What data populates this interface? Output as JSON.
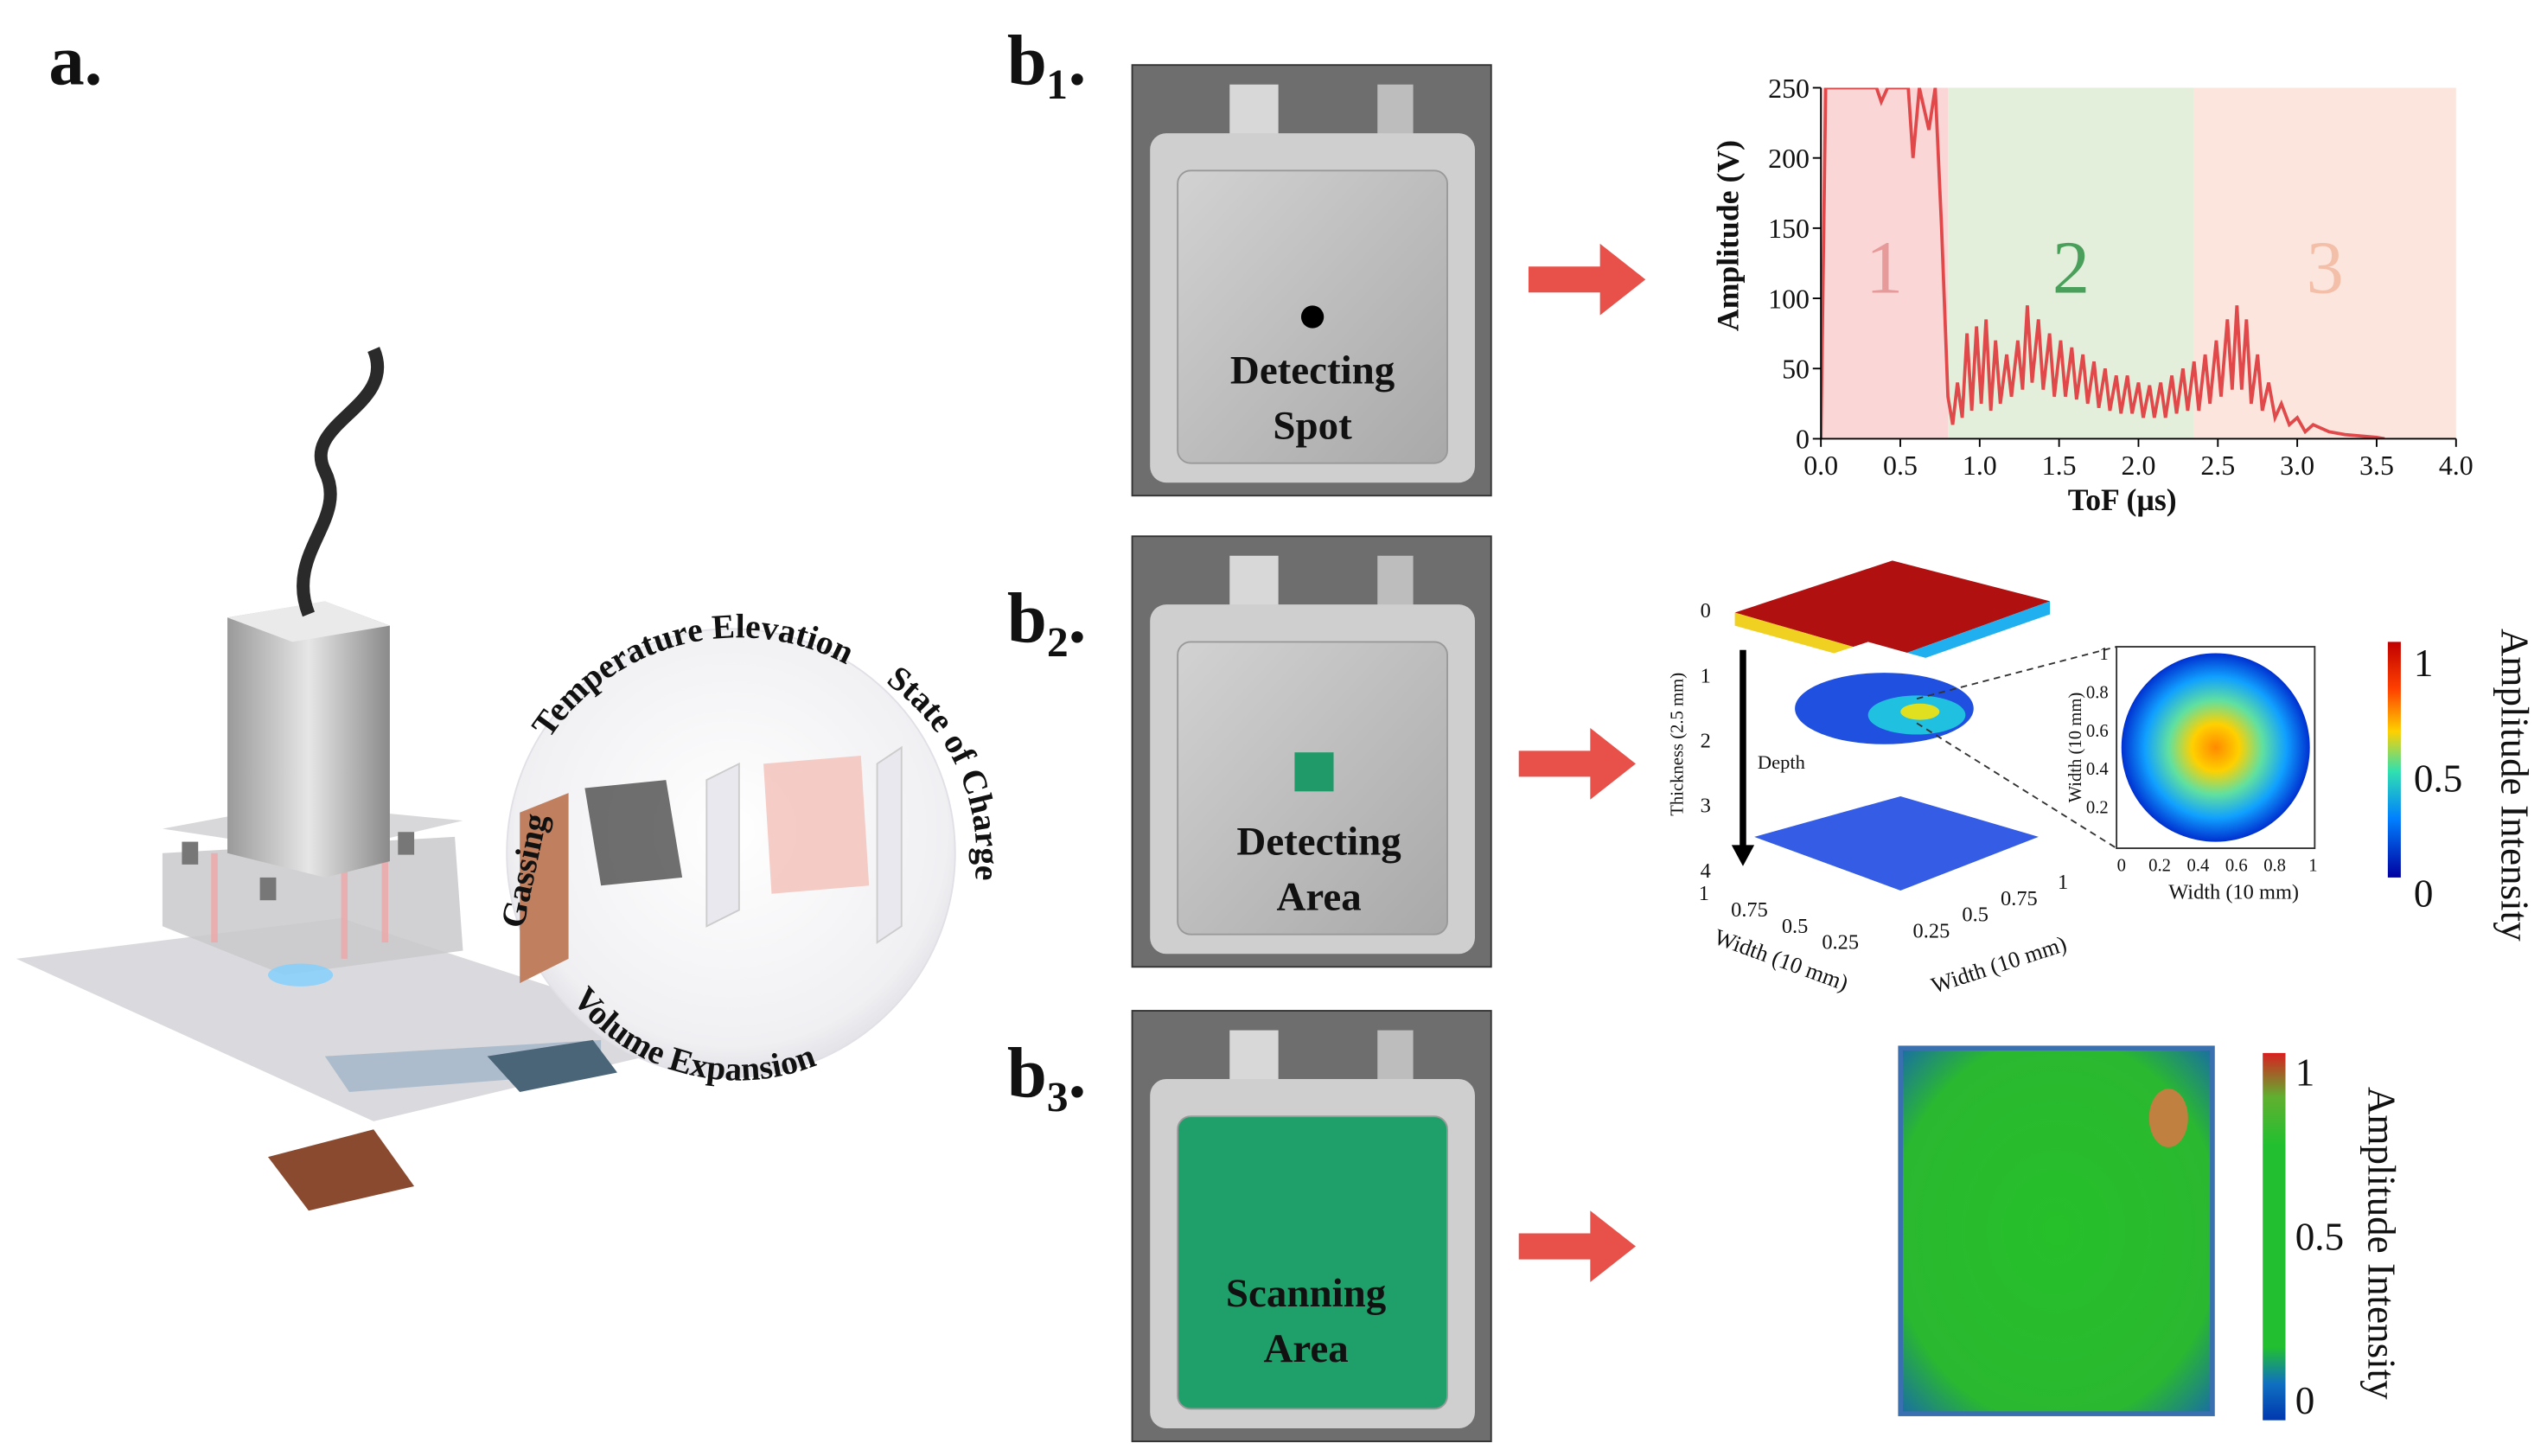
{
  "panel_labels": {
    "a": "a.",
    "b1": "b₁.",
    "b2": "b₂.",
    "b3": "b₃."
  },
  "sphere_labels": {
    "top": "Temperature Elevation",
    "right": "State of Charge",
    "bottom": "Volume Expansion",
    "left": "Gassing"
  },
  "batteries": [
    {
      "lines": [
        "Detecting",
        "Spot"
      ]
    },
    {
      "lines": [
        "Detecting",
        "Area"
      ]
    },
    {
      "lines": [
        "Scanning",
        "Area"
      ]
    }
  ],
  "chart_data": {
    "type": "line",
    "xlabel": "ToF (µs)",
    "ylabel": "Amplitude (V)",
    "color": "#e0484a",
    "xlim": [
      0,
      4
    ],
    "ylim": [
      0,
      250
    ],
    "xticks": [
      {
        "value": 0,
        "label": "0.0"
      },
      0.5,
      {
        "value": 1,
        "label": "1.0"
      },
      1.5,
      {
        "value": 2,
        "label": "2.0"
      },
      2.5,
      {
        "value": 3,
        "label": "3.0"
      },
      3.5,
      {
        "value": 4,
        "label": "4.0"
      }
    ],
    "yticks": [
      0,
      50,
      100,
      150,
      200,
      250
    ],
    "regions": [
      {
        "label": "1",
        "start": 0,
        "end": 0.8,
        "color": "#fbd6d6",
        "label_color": "#e79a9a"
      },
      {
        "label": "2",
        "start": 0.8,
        "end": 2.35,
        "color": "#e3eedb",
        "label_color": "#4aa05a"
      },
      {
        "label": "3",
        "start": 2.35,
        "end": 4,
        "color": "#fce5dd",
        "label_color": "#f3bfa8"
      }
    ],
    "x": [
      0,
      0.03,
      0.35,
      0.38,
      0.42,
      0.55,
      0.58,
      0.62,
      0.68,
      0.72,
      0.76,
      0.8,
      0.83,
      0.86,
      0.89,
      0.92,
      0.95,
      0.98,
      1.01,
      1.04,
      1.07,
      1.1,
      1.13,
      1.17,
      1.2,
      1.24,
      1.27,
      1.3,
      1.33,
      1.37,
      1.4,
      1.44,
      1.47,
      1.51,
      1.54,
      1.58,
      1.61,
      1.65,
      1.68,
      1.72,
      1.75,
      1.79,
      1.82,
      1.86,
      1.89,
      1.93,
      1.96,
      2,
      2.03,
      2.07,
      2.1,
      2.14,
      2.17,
      2.21,
      2.24,
      2.28,
      2.31,
      2.35,
      2.38,
      2.42,
      2.45,
      2.49,
      2.52,
      2.56,
      2.59,
      2.62,
      2.65,
      2.68,
      2.71,
      2.75,
      2.78,
      2.82,
      2.86,
      2.9,
      2.95,
      3,
      3.05,
      3.1,
      3.2,
      3.3,
      3.4,
      3.5,
      3.55
    ],
    "values": [
      0,
      250,
      250,
      240,
      250,
      250,
      200,
      250,
      220,
      250,
      150,
      30,
      10,
      40,
      15,
      75,
      20,
      80,
      25,
      85,
      20,
      70,
      25,
      60,
      30,
      70,
      35,
      95,
      40,
      85,
      35,
      75,
      30,
      70,
      30,
      65,
      28,
      60,
      25,
      55,
      22,
      50,
      20,
      45,
      18,
      45,
      18,
      40,
      15,
      38,
      15,
      40,
      15,
      45,
      18,
      50,
      20,
      55,
      20,
      60,
      25,
      70,
      30,
      85,
      35,
      95,
      35,
      85,
      25,
      60,
      20,
      40,
      15,
      25,
      10,
      15,
      5,
      10,
      5,
      3,
      2,
      1,
      0
    ]
  },
  "volume_plot": {
    "ylabel": "Thickness (2.5 mm)",
    "yticks": [
      0,
      1,
      2,
      3,
      4
    ],
    "annotation": "Depth",
    "xlabel": "Width (10 mm)",
    "xticks": [
      1,
      0.75,
      0.5,
      0.25
    ],
    "zlabel": "Width (10 mm)",
    "zticks": [
      0.25,
      0.5,
      0.75,
      1
    ]
  },
  "inset": {
    "xlabel": "Width (10 mm)",
    "ylabel": "Width (10 mm)",
    "xticks": [
      0,
      0.2,
      0.4,
      0.6,
      0.8,
      1
    ],
    "yticks": [
      0.2,
      0.4,
      0.6,
      0.8,
      1
    ]
  },
  "colorbar_b2": {
    "label": "Amplitude Intensity",
    "ticks": [
      1,
      0.5,
      0
    ]
  },
  "colorbar_b3": {
    "label": "Amplitude Intensity",
    "ticks": [
      1,
      0.5,
      0
    ]
  }
}
